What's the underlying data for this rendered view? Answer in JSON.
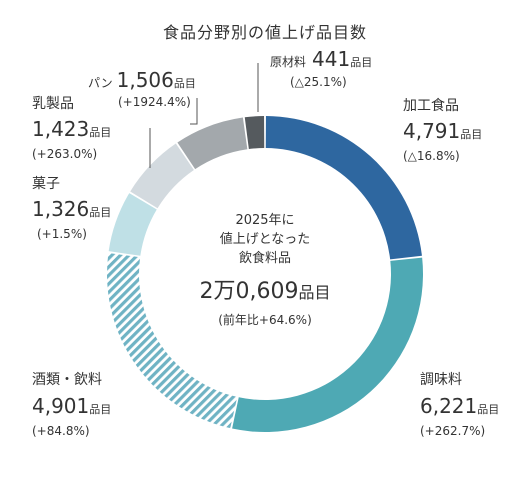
{
  "chart_data": {
    "type": "donut",
    "title": "食品分野別の値上げ品目数",
    "center": {
      "line1": "2025年に",
      "line2": "値上げとなった",
      "line3": "飲食料品",
      "total_a": "2万",
      "total_b": "0,609",
      "total_unit": "品目",
      "change": "(前年比+64.6%)"
    },
    "unit": "品目",
    "slices": [
      {
        "name": "加工食品",
        "value": 4791,
        "value_text": "4,791",
        "change": "(△16.8%)",
        "color": "#2e67a0",
        "pattern": "solid"
      },
      {
        "name": "調味料",
        "value": 6221,
        "value_text": "6,221",
        "change": "(+262.7%)",
        "color": "#4ea9b4",
        "pattern": "solid"
      },
      {
        "name": "酒類・飲料",
        "value": 4901,
        "value_text": "4,901",
        "change": "(+84.8%)",
        "color": "#6fb3c4",
        "pattern": "hatched"
      },
      {
        "name": "菓子",
        "value": 1326,
        "value_text": "1,326",
        "change": "(+1.5%)",
        "color": "#bfe0e6",
        "pattern": "solid"
      },
      {
        "name": "乳製品",
        "value": 1423,
        "value_text": "1,423",
        "change": "(+263.0%)",
        "color": "#d3dadf",
        "pattern": "solid"
      },
      {
        "name": "パン",
        "value": 1506,
        "value_text": "1,506",
        "change": "(+1924.4%)",
        "color": "#a3a8ac",
        "pattern": "solid"
      },
      {
        "name": "原材料",
        "value": 441,
        "value_text": "441",
        "change": "(△25.1%)",
        "color": "#555a5e",
        "pattern": "solid"
      }
    ]
  }
}
